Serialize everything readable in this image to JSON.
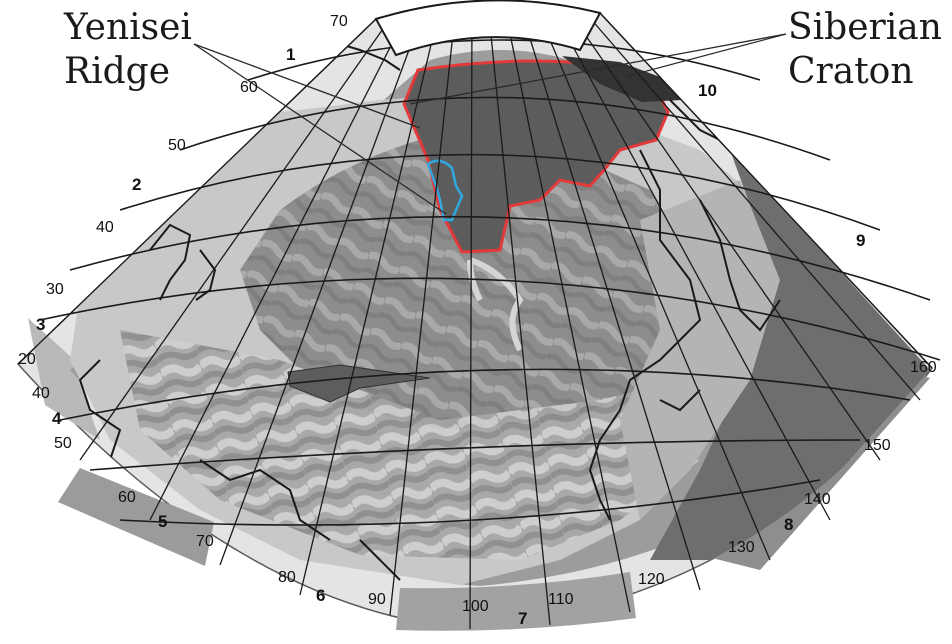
{
  "callouts": {
    "yenisei_line1": "Yenisei",
    "yenisei_line2": "Ridge",
    "siberian_line1": "Siberian",
    "siberian_line2": "Craton"
  },
  "zone_numbers": [
    "1",
    "2",
    "3",
    "4",
    "5",
    "6",
    "7",
    "8",
    "9",
    "10"
  ],
  "left_edge_labels": [
    "70",
    "60",
    "50",
    "40",
    "30",
    "20",
    "40",
    "50",
    "60",
    "70"
  ],
  "bottom_edge_labels": [
    "80",
    "90",
    "100",
    "110",
    "120",
    "130",
    "140",
    "150",
    "160"
  ],
  "colors": {
    "ocean": "#9c9c9c",
    "land_light": "#c8c8c8",
    "land_mid": "#8d8d8d",
    "land_dark": "#6e6e6e",
    "craton": "#5c5c5c",
    "craton_outline": "#e23a3a",
    "ridge_outline": "#2fa9e0",
    "frame": "#e4e4e4",
    "coast": "#1a1a1a"
  }
}
